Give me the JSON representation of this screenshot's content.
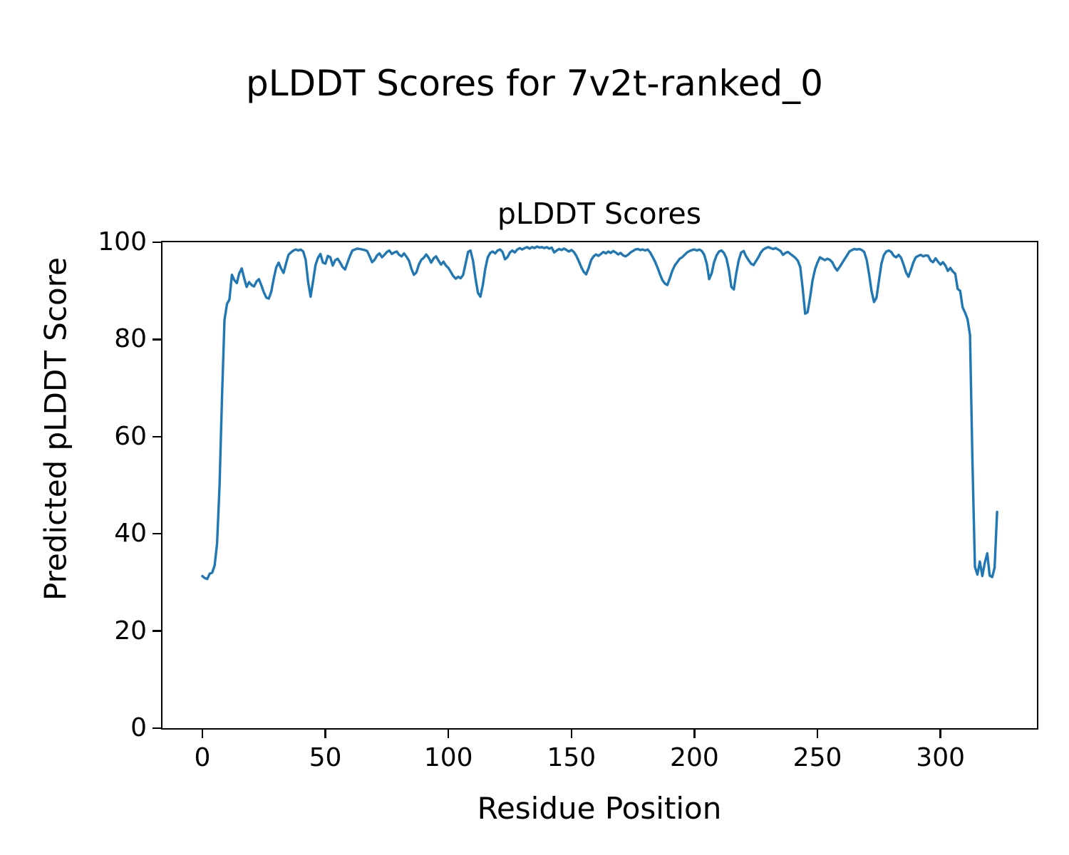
{
  "figure": {
    "suptitle": "pLDDT Scores for 7v2t-ranked_0",
    "background": "#ffffff",
    "text_color": "#000000"
  },
  "chart_data": {
    "type": "line",
    "title": "pLDDT Scores",
    "xlabel": "Residue Position",
    "ylabel": "Predicted pLDDT Score",
    "xlim": [
      -16.2,
      339.2
    ],
    "ylim": [
      0,
      100
    ],
    "x_ticks": [
      0,
      50,
      100,
      150,
      200,
      250,
      300
    ],
    "y_ticks": [
      0,
      20,
      40,
      60,
      80,
      100
    ],
    "grid": false,
    "legend": "none",
    "line_color": "#1f77b4",
    "series": [
      {
        "name": "pLDDT",
        "x_start": 0,
        "x_step": 1,
        "values": [
          31.3,
          30.9,
          30.7,
          31.8,
          32.0,
          33.5,
          38.0,
          50.0,
          68.0,
          84.0,
          87.3,
          88.2,
          93.3,
          92.2,
          91.6,
          93.6,
          94.6,
          92.6,
          90.8,
          91.8,
          91.2,
          90.9,
          91.9,
          92.4,
          91.1,
          89.7,
          88.6,
          88.4,
          89.8,
          92.5,
          94.8,
          95.8,
          94.6,
          93.7,
          95.6,
          97.4,
          97.9,
          98.3,
          98.5,
          98.3,
          98.5,
          98.1,
          96.4,
          91.8,
          88.8,
          92.0,
          95.3,
          96.8,
          97.6,
          95.8,
          95.6,
          97.2,
          96.9,
          95.2,
          96.3,
          96.6,
          95.8,
          94.9,
          94.4,
          95.8,
          97.2,
          98.3,
          98.5,
          98.7,
          98.6,
          98.5,
          98.4,
          98.2,
          97.1,
          95.9,
          96.4,
          97.3,
          97.7,
          96.9,
          97.4,
          98.0,
          98.3,
          97.6,
          97.9,
          98.1,
          97.4,
          97.1,
          97.7,
          97.0,
          96.2,
          94.5,
          93.3,
          93.8,
          95.4,
          96.4,
          96.8,
          97.5,
          96.8,
          95.8,
          96.7,
          97.1,
          96.2,
          95.4,
          96.0,
          95.2,
          94.7,
          93.9,
          93.0,
          92.5,
          92.9,
          92.6,
          93.3,
          95.6,
          98.0,
          98.3,
          96.2,
          92.6,
          89.6,
          88.8,
          91.2,
          94.6,
          96.9,
          97.8,
          98.1,
          97.7,
          98.3,
          98.5,
          98.0,
          96.5,
          96.9,
          97.9,
          98.3,
          97.9,
          98.5,
          98.8,
          98.5,
          98.8,
          99.0,
          98.7,
          99.0,
          98.8,
          99.1,
          98.9,
          99.0,
          98.8,
          99.0,
          98.7,
          98.9,
          97.9,
          98.3,
          98.6,
          98.4,
          98.7,
          98.4,
          98.1,
          98.4,
          98.0,
          97.2,
          96.1,
          94.9,
          93.9,
          93.4,
          94.7,
          96.3,
          97.1,
          97.5,
          97.2,
          97.6,
          98.0,
          97.7,
          98.1,
          97.8,
          98.2,
          97.9,
          97.5,
          97.8,
          97.3,
          97.1,
          97.4,
          97.9,
          98.2,
          98.5,
          98.6,
          98.4,
          98.5,
          98.3,
          98.5,
          97.9,
          97.0,
          96.0,
          94.8,
          93.4,
          92.2,
          91.5,
          91.2,
          92.6,
          94.1,
          95.2,
          95.9,
          96.6,
          96.9,
          97.4,
          97.9,
          98.2,
          98.4,
          98.5,
          98.3,
          98.5,
          98.2,
          97.4,
          95.6,
          92.4,
          93.6,
          95.9,
          97.3,
          98.1,
          98.3,
          97.8,
          96.7,
          94.3,
          90.8,
          90.3,
          93.6,
          96.3,
          97.9,
          98.2,
          97.1,
          96.3,
          95.6,
          95.3,
          96.1,
          96.9,
          97.9,
          98.5,
          98.8,
          99.0,
          98.8,
          98.6,
          98.8,
          98.5,
          98.2,
          97.4,
          97.8,
          98.0,
          97.6,
          97.2,
          96.8,
          96.2,
          94.9,
          90.5,
          85.3,
          85.6,
          88.6,
          92.1,
          94.4,
          95.8,
          96.9,
          96.6,
          96.3,
          96.6,
          96.4,
          95.9,
          94.9,
          94.2,
          94.9,
          95.7,
          96.5,
          97.3,
          98.1,
          98.4,
          98.6,
          98.5,
          98.6,
          98.4,
          98.0,
          96.4,
          93.4,
          89.9,
          87.7,
          88.6,
          92.2,
          95.6,
          97.4,
          98.1,
          98.3,
          98.0,
          97.2,
          96.9,
          97.4,
          96.8,
          95.4,
          93.8,
          92.9,
          94.3,
          95.9,
          96.9,
          97.2,
          97.4,
          97.1,
          97.3,
          97.2,
          96.2,
          95.9,
          96.7,
          96.0,
          95.4,
          95.9,
          95.2,
          94.1,
          94.7,
          94.0,
          93.5,
          90.4,
          90.0,
          86.6,
          85.5,
          84.2,
          80.9,
          55.0,
          33.2,
          31.6,
          34.3,
          31.3,
          34.0,
          36.0,
          31.4,
          31.1,
          33.0,
          44.5
        ]
      }
    ]
  }
}
